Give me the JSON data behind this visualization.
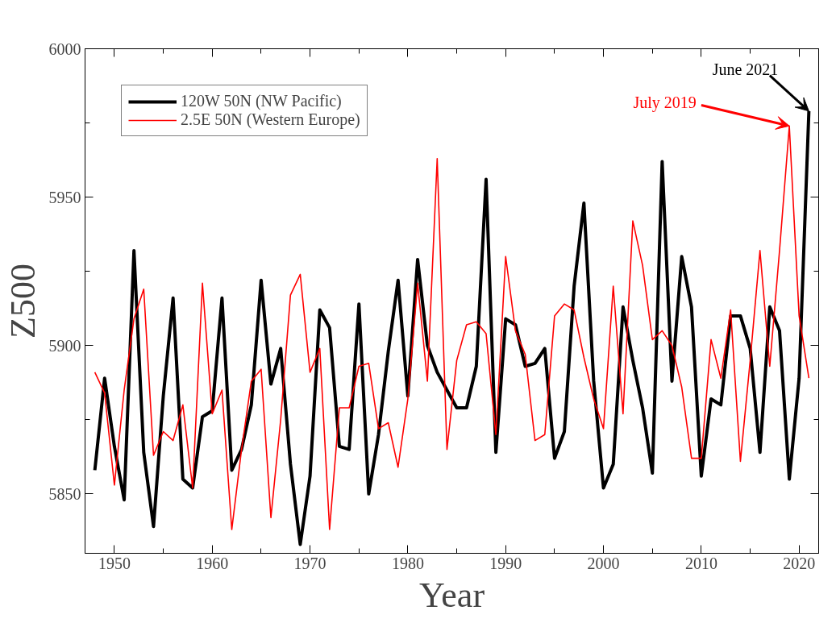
{
  "chart_data": {
    "type": "line",
    "xlabel": "Year",
    "ylabel": "Z500",
    "xlim": [
      1947,
      2022
    ],
    "xticks": [
      1950,
      1960,
      1970,
      1980,
      1990,
      2000,
      2010,
      2020
    ],
    "ylim": [
      5830,
      6000
    ],
    "yticks": [
      5850,
      5900,
      5950,
      6000
    ],
    "x": [
      1948,
      1949,
      1950,
      1951,
      1952,
      1953,
      1954,
      1955,
      1956,
      1957,
      1958,
      1959,
      1960,
      1961,
      1962,
      1963,
      1964,
      1965,
      1966,
      1967,
      1968,
      1969,
      1970,
      1971,
      1972,
      1973,
      1974,
      1975,
      1976,
      1977,
      1978,
      1979,
      1980,
      1981,
      1982,
      1983,
      1984,
      1985,
      1986,
      1987,
      1988,
      1989,
      1990,
      1991,
      1992,
      1993,
      1994,
      1995,
      1996,
      1997,
      1998,
      1999,
      2000,
      2001,
      2002,
      2003,
      2004,
      2005,
      2006,
      2007,
      2008,
      2009,
      2010,
      2011,
      2012,
      2013,
      2014,
      2015,
      2016,
      2017,
      2018,
      2019,
      2020,
      2021
    ],
    "series": [
      {
        "name": "120W 50N (NW Pacific)",
        "color": "#000000",
        "values": [
          5858,
          5889,
          5866,
          5848,
          5932,
          5864,
          5839,
          5883,
          5916,
          5855,
          5852,
          5876,
          5878,
          5916,
          5858,
          5865,
          5880,
          5922,
          5887,
          5899,
          5860,
          5833,
          5856,
          5912,
          5906,
          5866,
          5865,
          5914,
          5850,
          5870,
          5898,
          5922,
          5883,
          5929,
          5900,
          5891,
          5885,
          5879,
          5879,
          5893,
          5956,
          5864,
          5909,
          5907,
          5893,
          5894,
          5899,
          5862,
          5871,
          5920,
          5948,
          5888,
          5852,
          5860,
          5913,
          5895,
          5879,
          5857,
          5962,
          5888,
          5930,
          5913,
          5856,
          5882,
          5880,
          5910,
          5910,
          5899,
          5864,
          5913,
          5905,
          5855,
          5889,
          5979
        ]
      },
      {
        "name": "2.5E 50N (Western Europe)",
        "color": "#ff0000",
        "values": [
          5891,
          5884,
          5853,
          5885,
          5909,
          5919,
          5863,
          5871,
          5868,
          5880,
          5852,
          5921,
          5877,
          5885,
          5838,
          5865,
          5888,
          5892,
          5842,
          5875,
          5917,
          5924,
          5891,
          5899,
          5838,
          5879,
          5879,
          5893,
          5894,
          5872,
          5874,
          5859,
          5882,
          5921,
          5888,
          5963,
          5865,
          5895,
          5907,
          5908,
          5904,
          5870,
          5930,
          5905,
          5897,
          5868,
          5870,
          5910,
          5914,
          5912,
          5896,
          5882,
          5872,
          5920,
          5877,
          5942,
          5927,
          5902,
          5905,
          5900,
          5886,
          5862,
          5862,
          5902,
          5889,
          5912,
          5861,
          5895,
          5932,
          5893,
          5932,
          5974,
          5910,
          5889
        ]
      }
    ],
    "annotations": [
      {
        "text": "June 2021",
        "x": 2021,
        "y": 5979
      },
      {
        "text": "July 2019",
        "x": 2019,
        "y": 5974
      }
    ],
    "legend": "top left",
    "grid": false,
    "marker": "none",
    "line_style": "solid"
  }
}
